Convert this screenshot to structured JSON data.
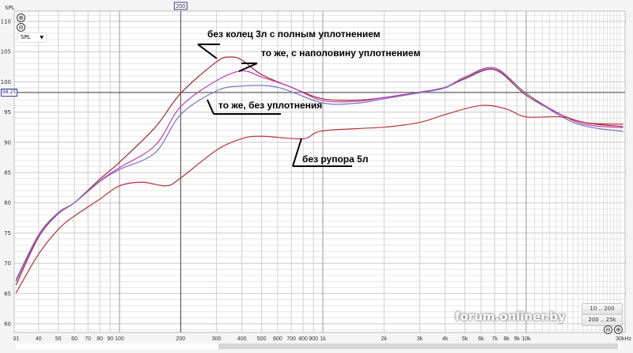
{
  "chart_data": {
    "type": "line",
    "ylabel": "SPL",
    "xlabel": "",
    "x_scale": "log",
    "xlim": [
      31,
      30000
    ],
    "ylim": [
      60,
      110
    ],
    "grid": true,
    "y_ticks": [
      "110",
      "105",
      "100",
      "95",
      "90",
      "85",
      "80",
      "75",
      "70",
      "65",
      "60"
    ],
    "x_ticks": [
      {
        "f": 31,
        "label": "31"
      },
      {
        "f": 40,
        "label": "40"
      },
      {
        "f": 50,
        "label": "50"
      },
      {
        "f": 60,
        "label": "60"
      },
      {
        "f": 70,
        "label": "70"
      },
      {
        "f": 80,
        "label": "80"
      },
      {
        "f": 90,
        "label": "90"
      },
      {
        "f": 100,
        "label": "100"
      },
      {
        "f": 200,
        "label": "200"
      },
      {
        "f": 300,
        "label": "300"
      },
      {
        "f": 400,
        "label": "400"
      },
      {
        "f": 500,
        "label": "500"
      },
      {
        "f": 600,
        "label": "600"
      },
      {
        "f": 700,
        "label": "700"
      },
      {
        "f": 800,
        "label": "800"
      },
      {
        "f": 900,
        "label": "900"
      },
      {
        "f": 1000,
        "label": "1k"
      },
      {
        "f": 2000,
        "label": "2k"
      },
      {
        "f": 3000,
        "label": "3k"
      },
      {
        "f": 4000,
        "label": "4k"
      },
      {
        "f": 5000,
        "label": "5k"
      },
      {
        "f": 6000,
        "label": "6k"
      },
      {
        "f": 7000,
        "label": "7k"
      },
      {
        "f": 8000,
        "label": "8k"
      },
      {
        "f": 9000,
        "label": "9k"
      },
      {
        "f": 10000,
        "label": "10k"
      },
      {
        "f": 30000,
        "label": "30kHz"
      }
    ],
    "cursor": {
      "x_label": "200",
      "y_label": "98.25",
      "x": 200,
      "y": 98.25
    },
    "series": [
      {
        "name": "без колец 3л с полным уплотнением",
        "color": "#a3282c",
        "x": [
          31,
          40,
          50,
          60,
          80,
          100,
          150,
          200,
          300,
          350,
          400,
          500,
          700,
          1000,
          1500,
          2000,
          3000,
          4000,
          5000,
          7000,
          10000,
          15000,
          20000,
          30000
        ],
        "y": [
          66.4,
          74.3,
          78.2,
          80,
          83.9,
          86.7,
          92.5,
          98.1,
          103.3,
          104.1,
          103.6,
          101.2,
          99.1,
          97.2,
          97.0,
          97.4,
          98.3,
          99.1,
          100.5,
          102,
          97.8,
          94.5,
          93.2,
          92.6
        ]
      },
      {
        "name": "то же, с наполовину уплотнением",
        "color": "#c03cb8",
        "x": [
          31,
          40,
          50,
          60,
          80,
          100,
          150,
          200,
          300,
          400,
          500,
          700,
          1000,
          1500,
          2000,
          3000,
          4000,
          5000,
          7000,
          10000,
          15000,
          20000,
          30000
        ],
        "y": [
          67,
          74.5,
          78.3,
          80,
          83.6,
          85.8,
          89.5,
          95.9,
          100.2,
          101.8,
          100.8,
          99.1,
          96.9,
          96.8,
          97.4,
          98.3,
          99.1,
          100.8,
          102.3,
          98.1,
          94.5,
          92.9,
          92.4
        ]
      },
      {
        "name": "то же, без уплотнения",
        "color": "#7a72bc",
        "x": [
          31,
          40,
          50,
          60,
          80,
          100,
          150,
          200,
          300,
          400,
          600,
          1000,
          1500,
          2000,
          3000,
          4000,
          5000,
          7000,
          10000,
          15000,
          20000,
          30000
        ],
        "y": [
          67.3,
          74.7,
          78.4,
          80,
          83.5,
          85.5,
          88.3,
          94.6,
          98.5,
          99.3,
          99.1,
          96.5,
          96.5,
          97.2,
          98.2,
          99.0,
          100.7,
          102.1,
          98.1,
          94.2,
          92.6,
          91.8
        ]
      },
      {
        "name": "без рупора 5л",
        "color": "#b8343a",
        "x": [
          31,
          40,
          50,
          60,
          80,
          100,
          130,
          170,
          200,
          300,
          400,
          500,
          800,
          1000,
          2000,
          3000,
          4000,
          6000,
          8000,
          10000,
          15000,
          20000,
          30000
        ],
        "y": [
          65.1,
          71.5,
          75.6,
          77.8,
          80.6,
          82.8,
          83.4,
          82.8,
          84.1,
          88.7,
          90.6,
          91.0,
          90.6,
          91.9,
          92.5,
          93.3,
          94.6,
          96.1,
          95.5,
          94.2,
          94.2,
          93.2,
          93.0
        ]
      }
    ],
    "annotations": [
      "без колец 3л с полным уплотнением",
      "то же, с наполовину уплотнением",
      "то же, без уплотнения",
      "без рупора 5л"
    ]
  },
  "controls": {
    "spl_label": "SPL",
    "select_value": "SPL",
    "zoom_in": "⊕",
    "zoom_out": "⊖",
    "btn_low": "10 .. 200",
    "btn_high": "200 .. 25k",
    "watermark": "forum.onliner.by"
  }
}
